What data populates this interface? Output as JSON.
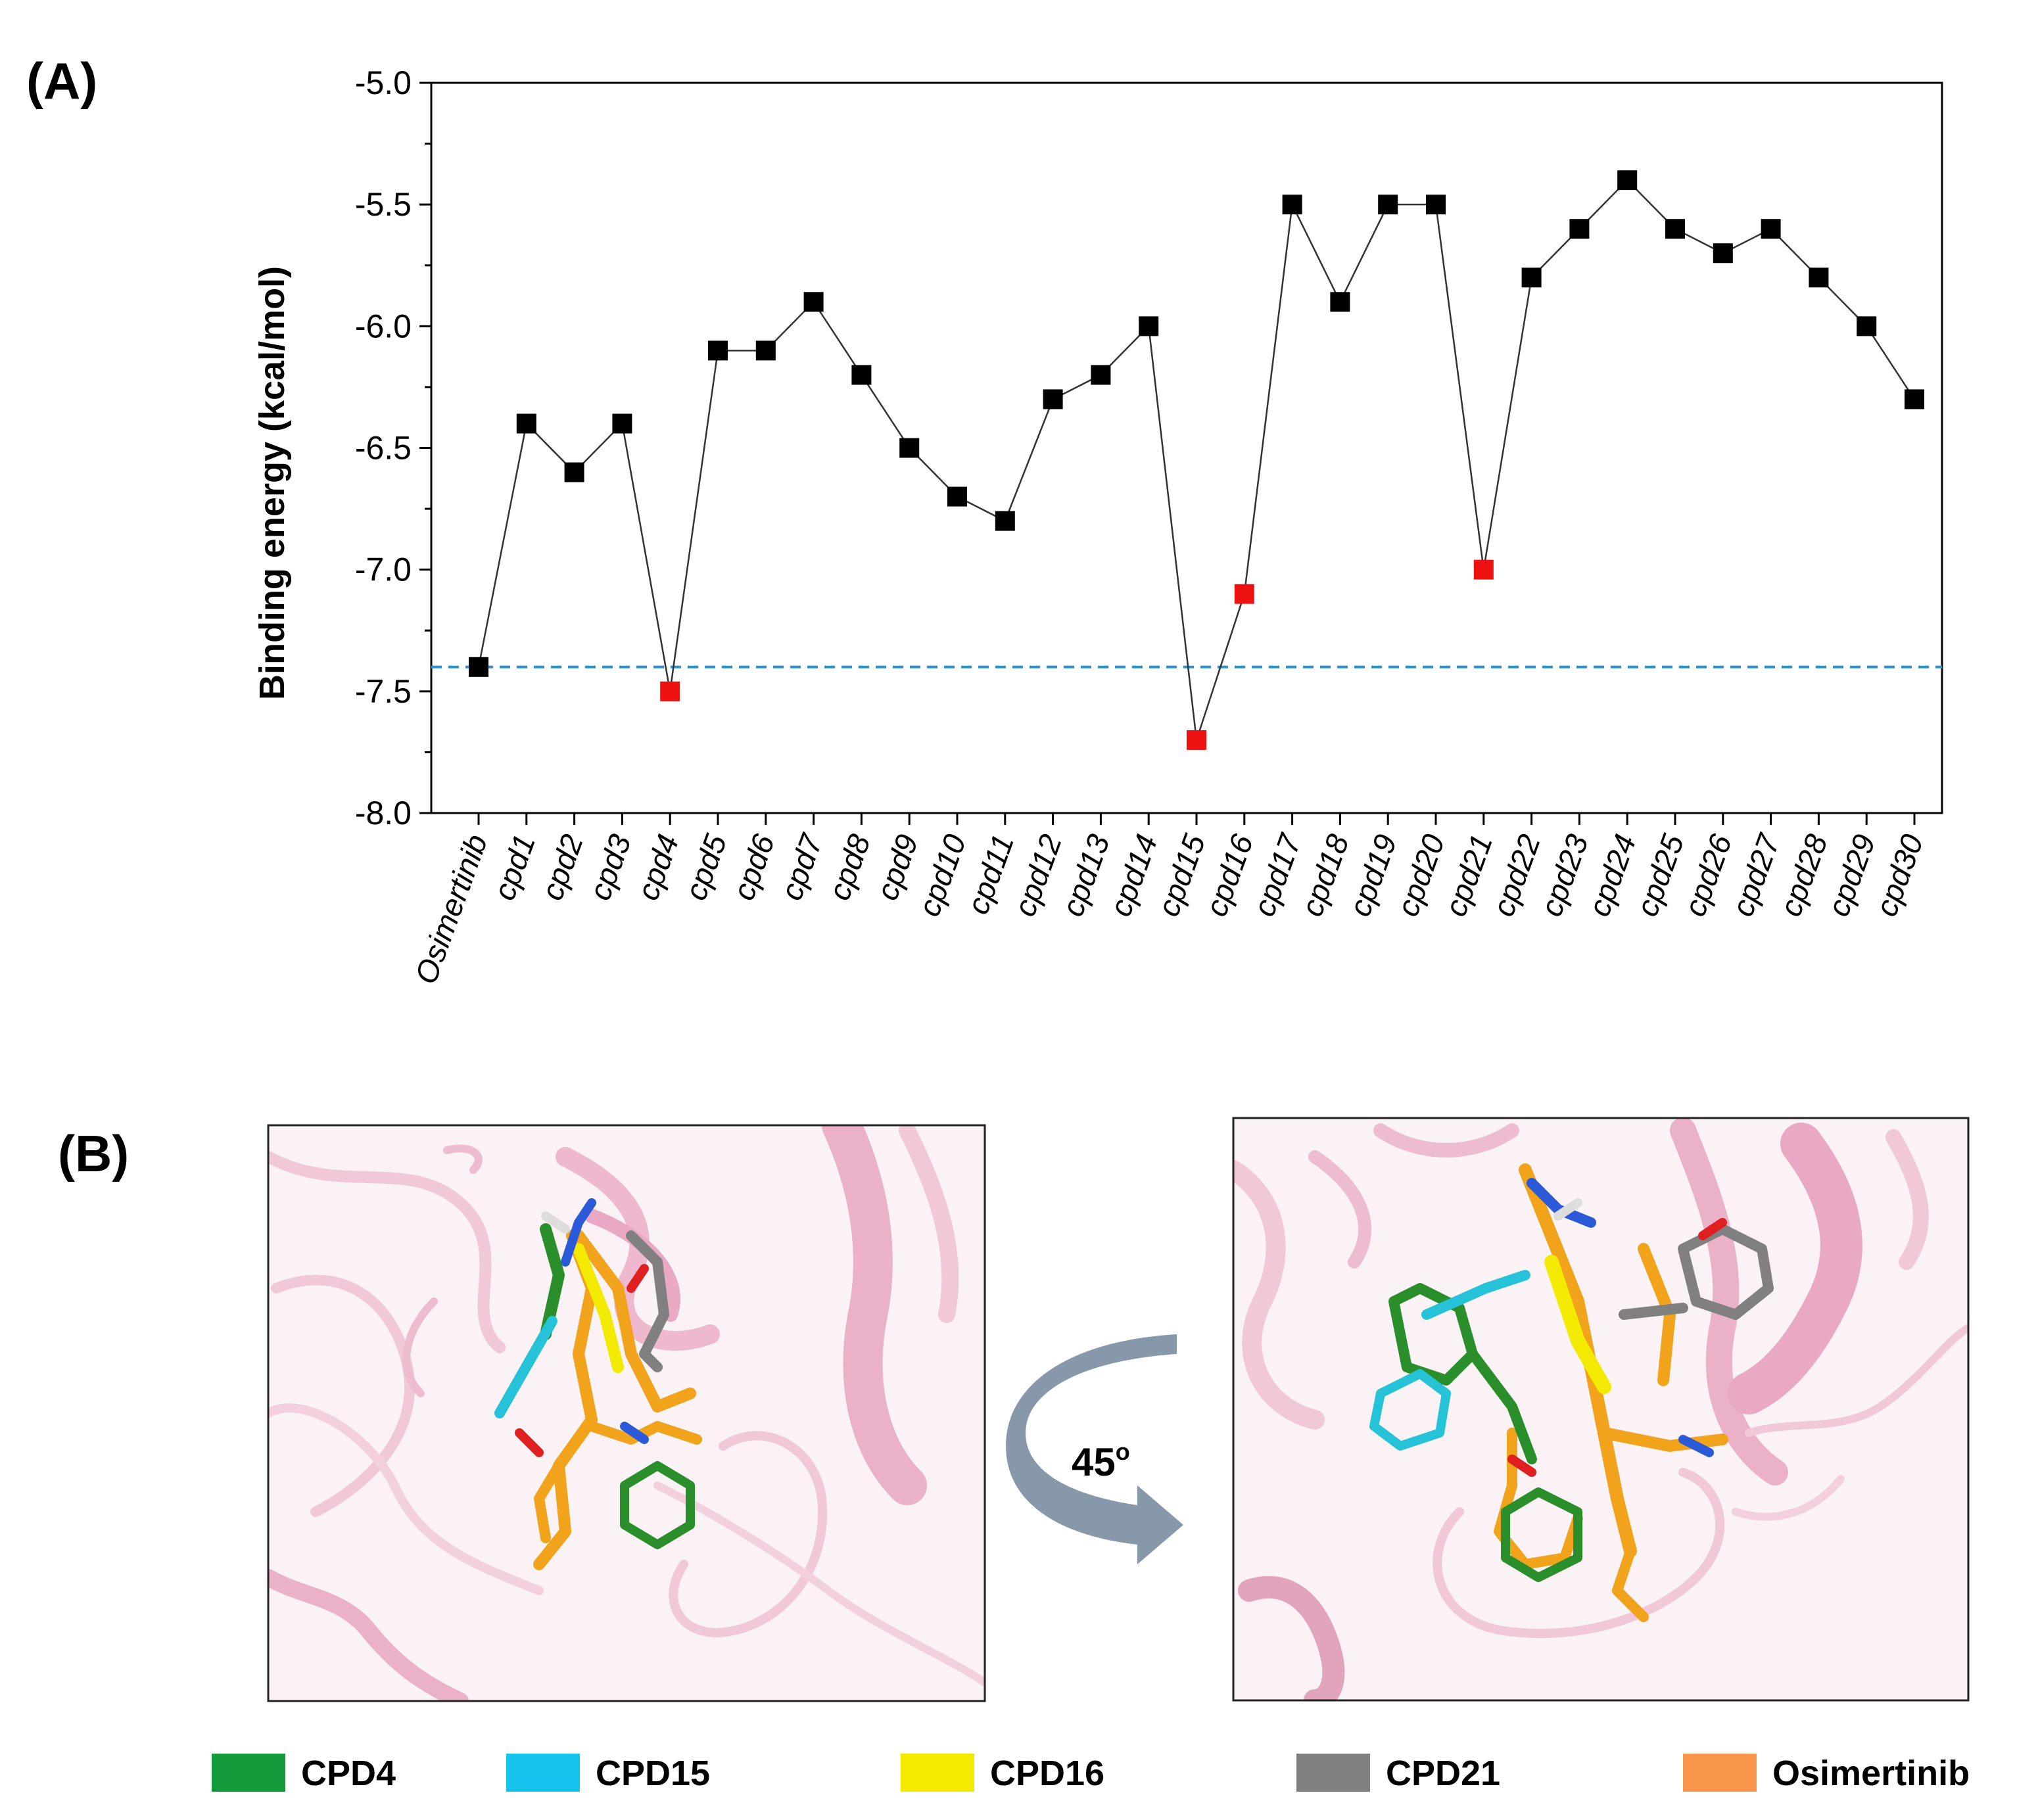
{
  "panel_labels": {
    "a": "(A)",
    "b": "(B)"
  },
  "chart_data": {
    "type": "line",
    "title": "",
    "xlabel": "",
    "ylabel": "Binding energy (kcal/mol)",
    "ylim": [
      -8.0,
      -5.0
    ],
    "yticks": [
      "-5.0",
      "-5.5",
      "-6.0",
      "-6.5",
      "-7.0",
      "-7.5",
      "-8.0"
    ],
    "categories": [
      "Osimertinib",
      "cpd1",
      "cpd2",
      "cpd3",
      "cpd4",
      "cpd5",
      "cpd6",
      "cpd7",
      "cpd8",
      "cpd9",
      "cpd10",
      "cpd11",
      "cpd12",
      "cpd13",
      "cpd14",
      "cpd15",
      "cpd16",
      "cpd17",
      "cpd18",
      "cpd19",
      "cpd20",
      "cpd21",
      "cpd22",
      "cpd23",
      "cpd24",
      "cpd25",
      "cpd26",
      "cpd27",
      "cpd28",
      "cpd29",
      "cpd30"
    ],
    "values": [
      -7.4,
      -6.4,
      -6.6,
      -6.4,
      -7.5,
      -6.1,
      -6.1,
      -5.9,
      -6.2,
      -6.5,
      -6.7,
      -6.8,
      -6.3,
      -6.2,
      -6.0,
      -7.7,
      -7.1,
      -5.5,
      -5.9,
      -5.5,
      -5.5,
      -7.0,
      -5.8,
      -5.6,
      -5.4,
      -5.6,
      -5.7,
      -5.6,
      -5.8,
      -6.0,
      -6.3
    ],
    "highlighted": [
      "cpd4",
      "cpd15",
      "cpd16",
      "cpd21"
    ],
    "reference_line": {
      "value": -7.4,
      "style": "dashed"
    },
    "colors": {
      "normal": "#000000",
      "highlight": "#ee1111",
      "reference": "#2a8fd4",
      "line": "#333333"
    }
  },
  "panel_b": {
    "rotation_label": "45",
    "rotation_unit": "o",
    "legend": [
      {
        "label": "CPD4",
        "color": "#139a3a"
      },
      {
        "label": "CPD15",
        "color": "#16c3ec"
      },
      {
        "label": "CPD16",
        "color": "#f2ea00"
      },
      {
        "label": "CPD21",
        "color": "#808080"
      },
      {
        "label": "Osimertinib",
        "color": "#f7964a"
      }
    ]
  }
}
